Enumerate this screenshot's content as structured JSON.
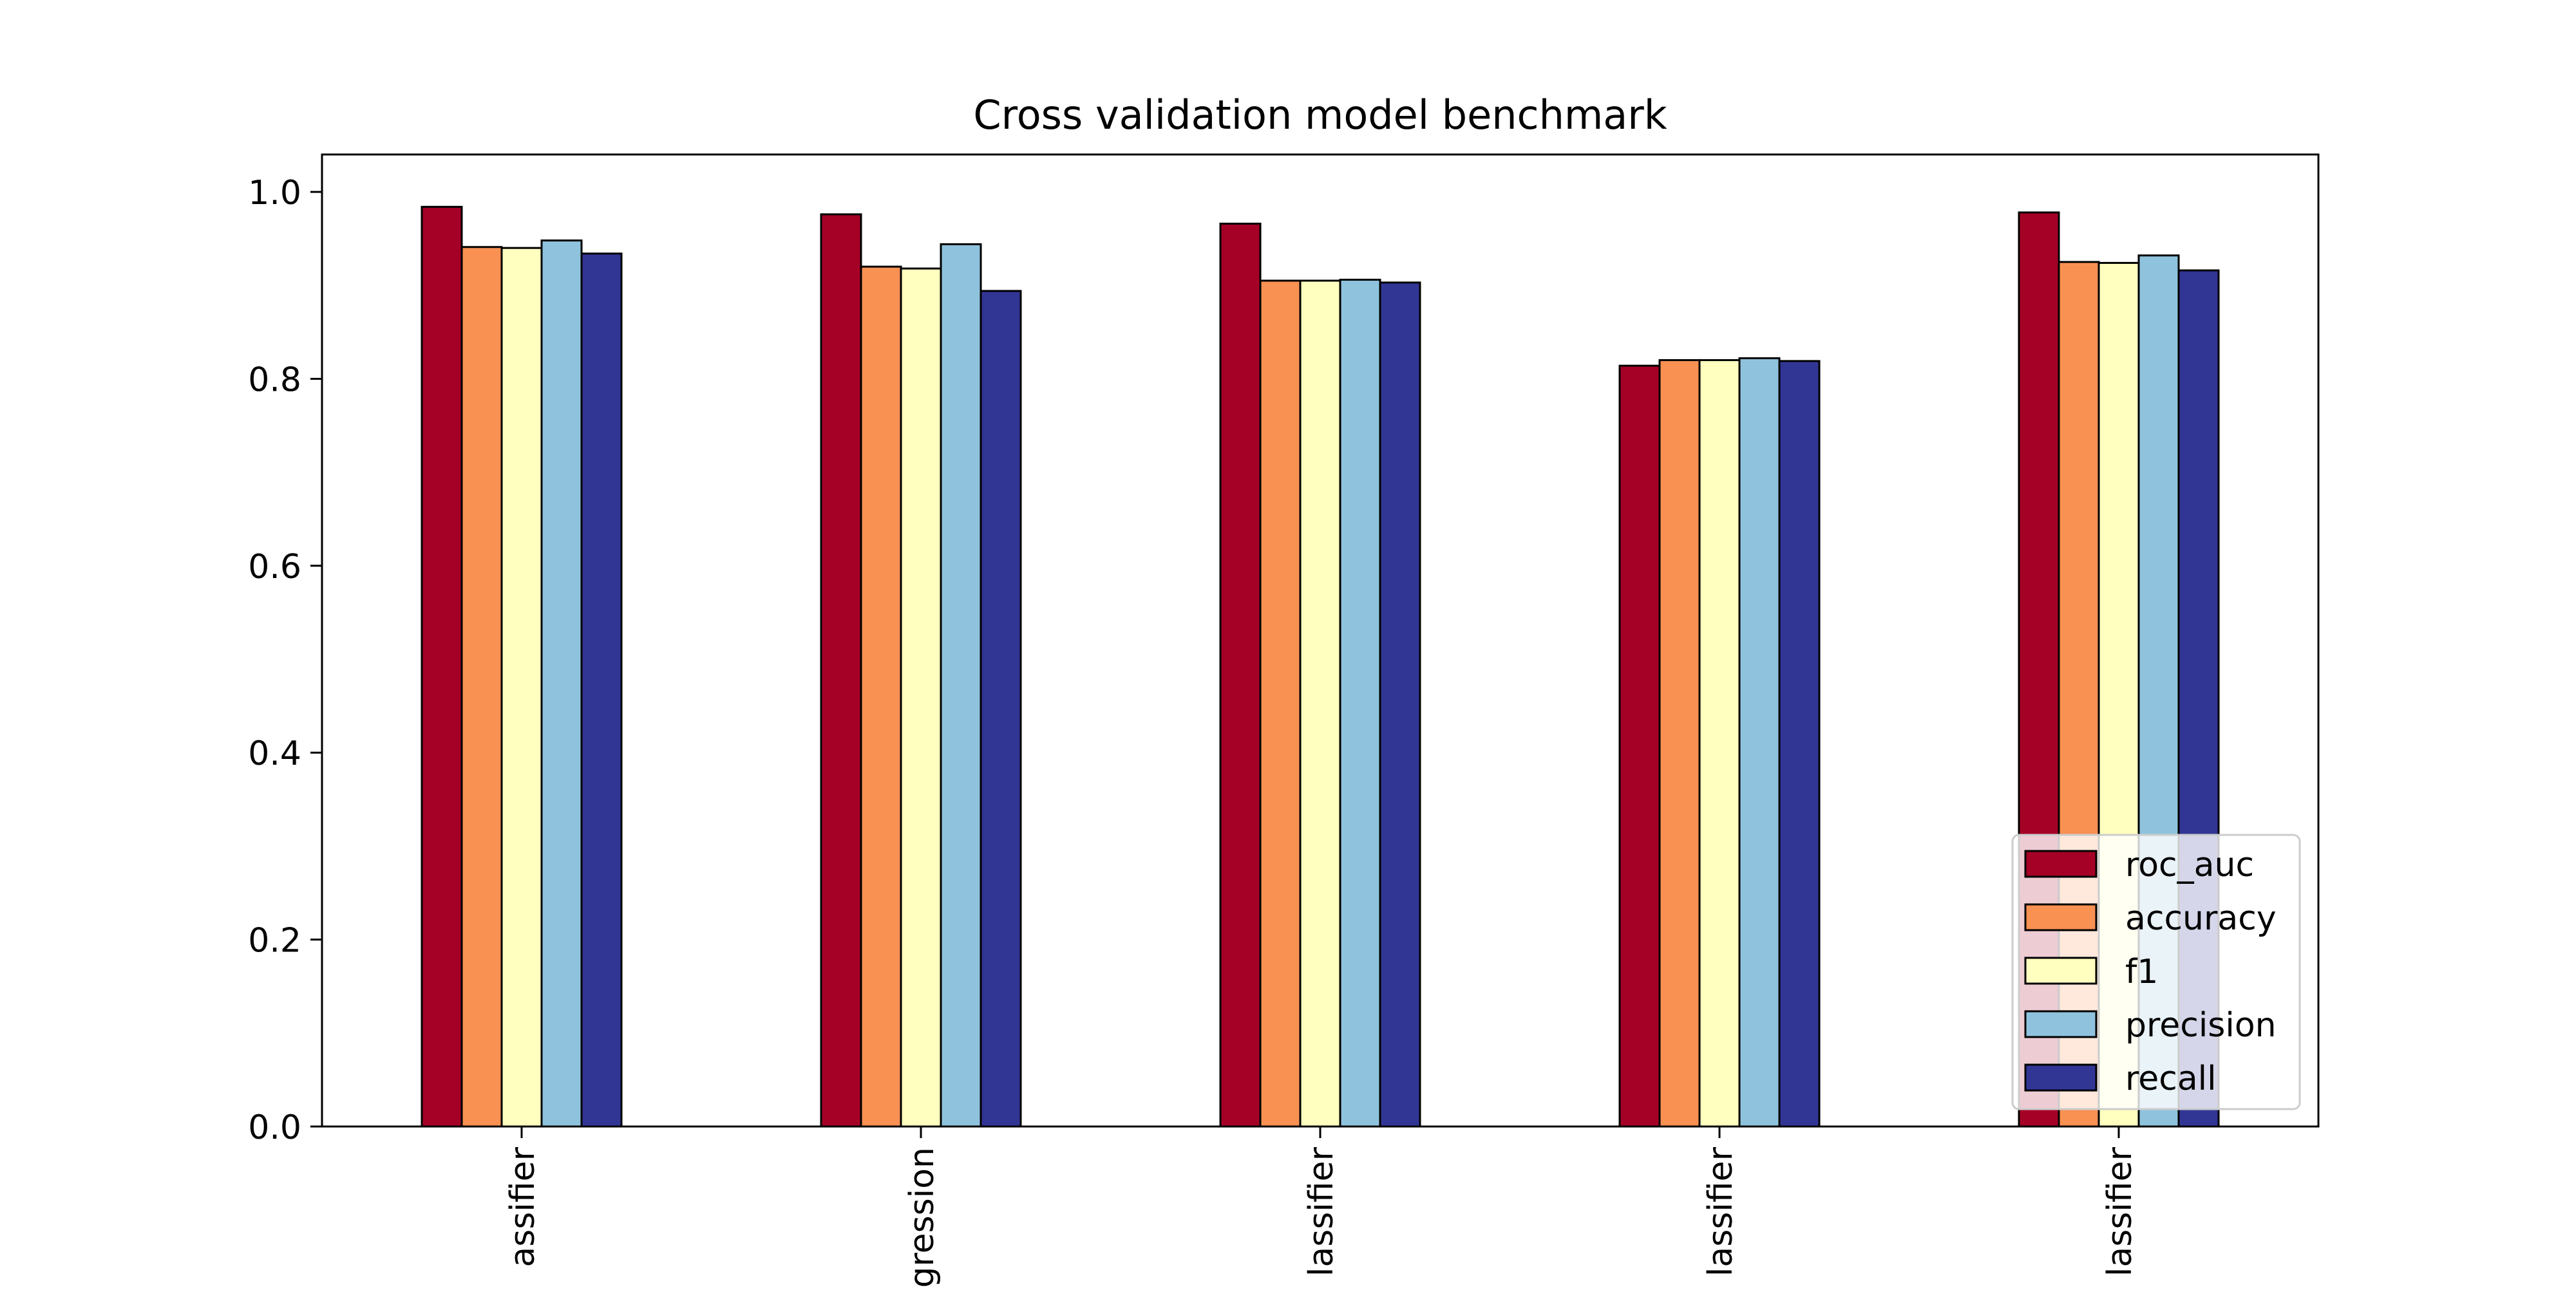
{
  "chart_data": {
    "type": "bar",
    "title": "Cross validation model benchmark",
    "xlabel": "",
    "ylabel": "",
    "categories": [
      "assifier",
      "gression",
      "lassifier",
      "lassifier",
      "lassifier"
    ],
    "ylim": [
      0,
      1.04
    ],
    "yticks": [
      0.0,
      0.2,
      0.4,
      0.6,
      0.8,
      1.0
    ],
    "ytick_labels": [
      "0.0",
      "0.2",
      "0.4",
      "0.6",
      "0.8",
      "1.0"
    ],
    "grid": false,
    "legend_position": "lower-right",
    "series": [
      {
        "name": "roc_auc",
        "color": "#a50026",
        "values": [
          0.984,
          0.976,
          0.966,
          0.814,
          0.978
        ]
      },
      {
        "name": "accuracy",
        "color": "#f99153",
        "values": [
          0.941,
          0.92,
          0.905,
          0.82,
          0.925
        ]
      },
      {
        "name": "f1",
        "color": "#ffffbf",
        "values": [
          0.94,
          0.918,
          0.905,
          0.82,
          0.924
        ]
      },
      {
        "name": "precision",
        "color": "#8fc3dd",
        "values": [
          0.948,
          0.944,
          0.906,
          0.822,
          0.932
        ]
      },
      {
        "name": "recall",
        "color": "#313695",
        "values": [
          0.934,
          0.894,
          0.903,
          0.819,
          0.916
        ]
      }
    ]
  }
}
